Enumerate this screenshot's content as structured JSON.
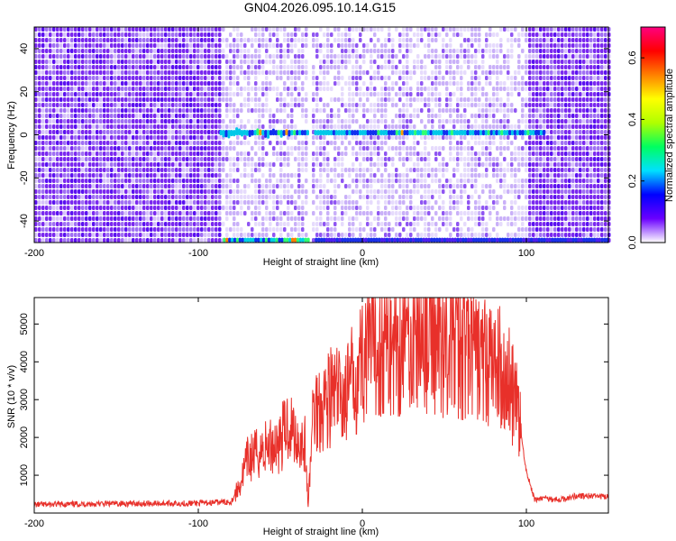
{
  "title": "GN04.2026.095.10.14.G15",
  "colors": {
    "snr_line": "#e8302a",
    "heatmap_background": "#ffffff",
    "colorbar_stops": [
      "#ffffff",
      "#6a00ff",
      "#0000ff",
      "#00e0ff",
      "#00ff60",
      "#b0ff00",
      "#ffff00",
      "#ff8000",
      "#ff0000",
      "#ff0080"
    ]
  },
  "chart_data": [
    {
      "type": "heatmap",
      "xlabel": "Height of straight line (km)",
      "ylabel": "Frequency (Hz)",
      "xlim": [
        -200,
        150
      ],
      "ylim": [
        -50,
        50
      ],
      "x_ticks": [
        "-200",
        "-100",
        "0",
        "100"
      ],
      "y_ticks": [
        "-40",
        "-20",
        "0",
        "20",
        "40"
      ],
      "colorbar": {
        "label": "Normalized spectral amplitude",
        "range": [
          0,
          0.7
        ],
        "ticks": [
          "0.0",
          "0.2",
          "0.4",
          "0.6"
        ]
      },
      "features": {
        "dense_noise_regions_km": [
          [
            -200,
            -87
          ],
          [
            100,
            150
          ]
        ],
        "sparse_region_km": [
          -87,
          100
        ],
        "strong_line_frequency_hz": 1,
        "strong_line_km": [
          -87,
          110
        ],
        "aliased_line_frequency_hz": -49,
        "aliased_line_km": [
          -85,
          150
        ],
        "gap_km": -32
      }
    },
    {
      "type": "line",
      "xlabel": "Height of straight line (km)",
      "ylabel": "SNR (10 * v/v)",
      "xlim": [
        -200,
        150
      ],
      "ylim": [
        0,
        5700
      ],
      "x_ticks": [
        "-200",
        "-100",
        "0",
        "100"
      ],
      "y_ticks": [
        "1000",
        "2000",
        "3000",
        "4000",
        "5000"
      ],
      "series": [
        {
          "x": [
            -200,
            -150,
            -100,
            -80,
            -75,
            -70,
            -60,
            -50,
            -45,
            -40,
            -35,
            -33,
            -30,
            -25,
            -20,
            -10,
            0,
            10,
            20,
            30,
            40,
            50,
            60,
            70,
            80,
            85,
            90,
            95,
            100,
            105,
            110,
            120,
            130,
            140,
            150
          ],
          "y": [
            220,
            250,
            260,
            300,
            700,
            1400,
            1700,
            1900,
            2400,
            2000,
            1800,
            200,
            2700,
            2900,
            3100,
            3100,
            4100,
            4400,
            4500,
            4700,
            4750,
            4550,
            4350,
            4100,
            3900,
            3750,
            3400,
            2600,
            1100,
            350,
            400,
            350,
            450,
            450,
            420
          ]
        }
      ]
    }
  ]
}
